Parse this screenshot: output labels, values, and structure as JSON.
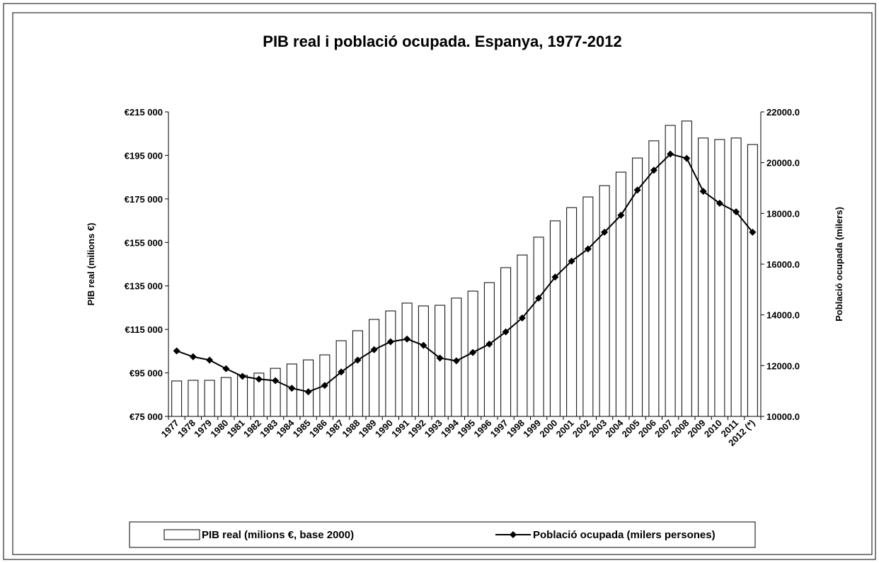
{
  "chart_data": {
    "type": "bar-line",
    "title": "PIB real i població ocupada. Espanya, 1977-2012",
    "y_label": "PIB real (milions €)",
    "y2_label": "Població ocupada (milers)",
    "categories": [
      "1977",
      "1978",
      "1979",
      "1980",
      "1981",
      "1982",
      "1983",
      "1984",
      "1985",
      "1986",
      "1987",
      "1988",
      "1989",
      "1990",
      "1991",
      "1992",
      "1993",
      "1994",
      "1995",
      "1996",
      "1997",
      "1998",
      "1999",
      "2000",
      "2001",
      "2002",
      "2003",
      "2004",
      "2005",
      "2006",
      "2007",
      "2008",
      "2009",
      "2010",
      "2011",
      "2012 (*)"
    ],
    "series": [
      {
        "name": "PIB real (milions €, base 2000)",
        "type": "bar",
        "color": "#ffffff",
        "stroke": "#000000",
        "values": [
          91300,
          91600,
          91600,
          92900,
          93900,
          94900,
          97100,
          99100,
          101000,
          103300,
          109800,
          114400,
          119600,
          123500,
          127100,
          125800,
          126100,
          129400,
          132600,
          136500,
          143400,
          149200,
          157400,
          164900,
          171000,
          175900,
          181100,
          187300,
          193800,
          201700,
          208800,
          210800,
          203000,
          202300,
          203000,
          200000
        ]
      },
      {
        "name": "Població ocupada (milers persones)",
        "type": "line",
        "axis": "y2",
        "color": "#000000",
        "values": [
          12580,
          12350,
          12220,
          11880,
          11580,
          11470,
          11410,
          11110,
          10970,
          11220,
          11750,
          12220,
          12630,
          12940,
          13050,
          12800,
          12300,
          12190,
          12520,
          12850,
          13330,
          13880,
          14660,
          15490,
          16120,
          16600,
          17260,
          17930,
          18920,
          19700,
          20340,
          20170,
          18870,
          18400,
          18060,
          17260
        ]
      }
    ],
    "ylim": [
      75000,
      215000
    ],
    "yticks": [
      {
        "value": 75000,
        "label": "€75 000"
      },
      {
        "value": 95000,
        "label": "€95 000"
      },
      {
        "value": 115000,
        "label": "€115 000"
      },
      {
        "value": 135000,
        "label": "€135 000"
      },
      {
        "value": 155000,
        "label": "€155 000"
      },
      {
        "value": 175000,
        "label": "€175 000"
      },
      {
        "value": 195000,
        "label": "€195 000"
      },
      {
        "value": 215000,
        "label": "€215 000"
      }
    ],
    "y2lim": [
      10000,
      22000
    ],
    "y2ticks": [
      {
        "value": 10000,
        "label": "10000.0"
      },
      {
        "value": 12000,
        "label": "12000.0"
      },
      {
        "value": 14000,
        "label": "14000.0"
      },
      {
        "value": 16000,
        "label": "16000.0"
      },
      {
        "value": 18000,
        "label": "18000.0"
      },
      {
        "value": 20000,
        "label": "20000.0"
      },
      {
        "value": 22000,
        "label": "22000.0"
      }
    ],
    "grid": false,
    "legend": "bottom"
  }
}
